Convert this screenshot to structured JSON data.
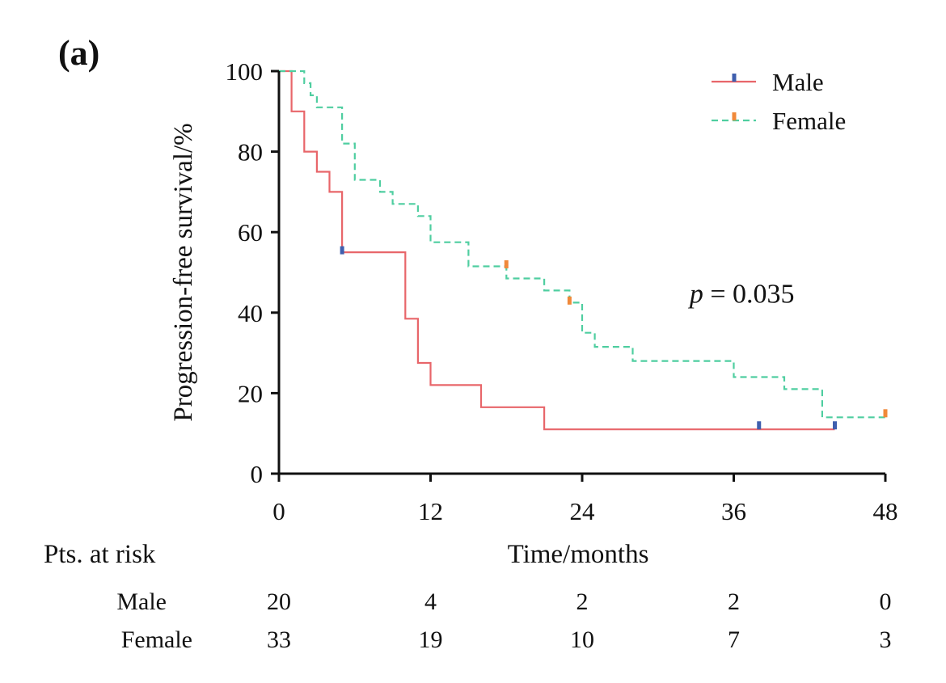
{
  "panel_label": "(a)",
  "chart_data": {
    "type": "line",
    "subtype": "kaplan-meier step",
    "title": "",
    "xlabel": "Time/months",
    "ylabel": "Progression-free survival/%",
    "xlim": [
      0,
      48
    ],
    "ylim": [
      0,
      100
    ],
    "xticks": [
      0,
      12,
      24,
      36,
      48
    ],
    "yticks": [
      0,
      20,
      40,
      60,
      80,
      100
    ],
    "legend_position": "top-right",
    "series": [
      {
        "name": "Male",
        "color": "#e8666a",
        "censor_color": "#3f5fae",
        "dash": "solid",
        "steps": [
          [
            0,
            100
          ],
          [
            1,
            100
          ],
          [
            1,
            90
          ],
          [
            2,
            90
          ],
          [
            2,
            80
          ],
          [
            3,
            80
          ],
          [
            3,
            75
          ],
          [
            4,
            75
          ],
          [
            4,
            70
          ],
          [
            5,
            70
          ],
          [
            5,
            55
          ],
          [
            10,
            55
          ],
          [
            10,
            38.5
          ],
          [
            11,
            38.5
          ],
          [
            11,
            27.5
          ],
          [
            12,
            27.5
          ],
          [
            12,
            22
          ],
          [
            16,
            22
          ],
          [
            16,
            16.5
          ],
          [
            21,
            16.5
          ],
          [
            21,
            11
          ],
          [
            44,
            11
          ]
        ],
        "censored": [
          [
            5,
            55.5
          ],
          [
            38,
            12
          ],
          [
            44,
            12
          ]
        ]
      },
      {
        "name": "Female",
        "color": "#4fcea0",
        "censor_color": "#f0893a",
        "dash": "dashed",
        "steps": [
          [
            0,
            100
          ],
          [
            2,
            100
          ],
          [
            2,
            97
          ],
          [
            2.5,
            97
          ],
          [
            2.5,
            94
          ],
          [
            3,
            94
          ],
          [
            3,
            91
          ],
          [
            5,
            91
          ],
          [
            5,
            82
          ],
          [
            6,
            82
          ],
          [
            6,
            73
          ],
          [
            8,
            73
          ],
          [
            8,
            70
          ],
          [
            9,
            70
          ],
          [
            9,
            67
          ],
          [
            11,
            67
          ],
          [
            11,
            64
          ],
          [
            12,
            64
          ],
          [
            12,
            57.5
          ],
          [
            15,
            57.5
          ],
          [
            15,
            51.5
          ],
          [
            18,
            51.5
          ],
          [
            18,
            48.5
          ],
          [
            21,
            48.5
          ],
          [
            21,
            45.5
          ],
          [
            23,
            45.5
          ],
          [
            23,
            42.5
          ],
          [
            24,
            42.5
          ],
          [
            24,
            35
          ],
          [
            25,
            35
          ],
          [
            25,
            31.5
          ],
          [
            28,
            31.5
          ],
          [
            28,
            28
          ],
          [
            36,
            28
          ],
          [
            36,
            24
          ],
          [
            40,
            24
          ],
          [
            40,
            21
          ],
          [
            43,
            21
          ],
          [
            43,
            14
          ],
          [
            48,
            14
          ]
        ],
        "censored": [
          [
            18,
            52
          ],
          [
            23,
            43
          ],
          [
            48,
            15
          ]
        ]
      }
    ],
    "annotations": [
      {
        "text_italic": "p",
        "text_rest": " = 0.035",
        "x": 32.5,
        "y": 42.5
      }
    ]
  },
  "risk_table": {
    "title": "Pts. at risk",
    "times": [
      0,
      12,
      24,
      36,
      48
    ],
    "rows": [
      {
        "label": "Male",
        "values": [
          "20",
          "4",
          "2",
          "2",
          "0"
        ]
      },
      {
        "label": "Female",
        "values": [
          "33",
          "19",
          "10",
          "7",
          "3"
        ]
      }
    ]
  }
}
